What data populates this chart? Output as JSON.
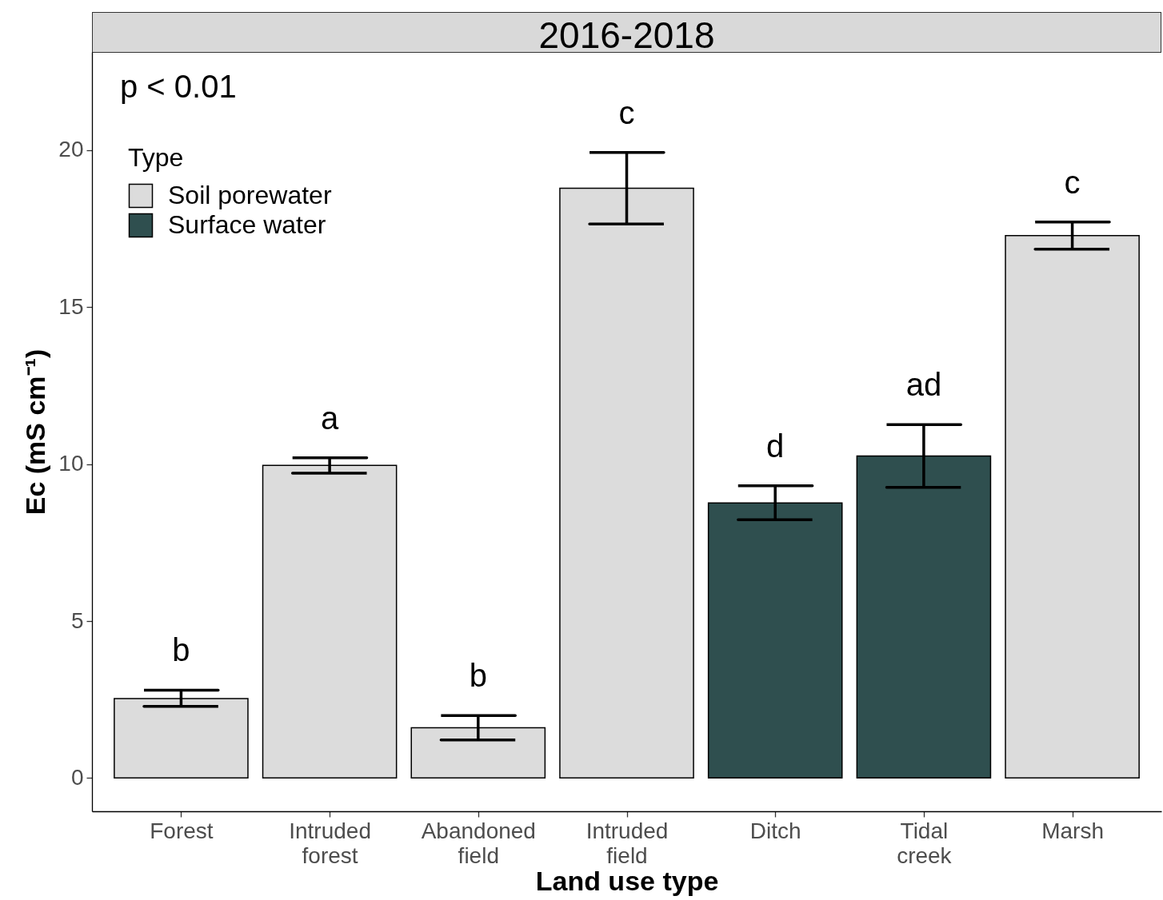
{
  "chart_data": {
    "type": "bar",
    "title": "2016-2018",
    "xlabel": "Land use type",
    "ylabel": "Ec (mS cm⁻¹)",
    "legend_title": "Type",
    "categories": [
      "Forest",
      "Intruded forest",
      "Abandoned field",
      "Intruded field",
      "Ditch",
      "Tidal creek",
      "Marsh"
    ],
    "series": [
      {
        "name": "Soil porewater",
        "color": "#dcdcdc",
        "values": [
          2.53,
          9.96,
          1.6,
          18.79,
          null,
          null,
          17.28
        ],
        "errors": [
          [
            2.28,
            2.8
          ],
          [
            9.71,
            10.2
          ],
          [
            1.21,
            1.99
          ],
          [
            17.65,
            19.93
          ],
          null,
          null,
          [
            16.85,
            17.71
          ]
        ]
      },
      {
        "name": "Surface water",
        "color": "#2f4f4f",
        "values": [
          null,
          null,
          null,
          null,
          8.76,
          10.26,
          null
        ],
        "errors": [
          null,
          null,
          null,
          null,
          [
            8.23,
            9.31
          ],
          [
            9.26,
            11.26
          ],
          null
        ]
      }
    ],
    "ylim": [
      -1.06,
      23.13
    ],
    "yticks": [
      0,
      5,
      10,
      15,
      20
    ],
    "grid": false,
    "legend": "top left",
    "annotations": [
      "p < 0.01",
      "b",
      "a",
      "b",
      "c",
      "d",
      "ad",
      "c"
    ]
  }
}
